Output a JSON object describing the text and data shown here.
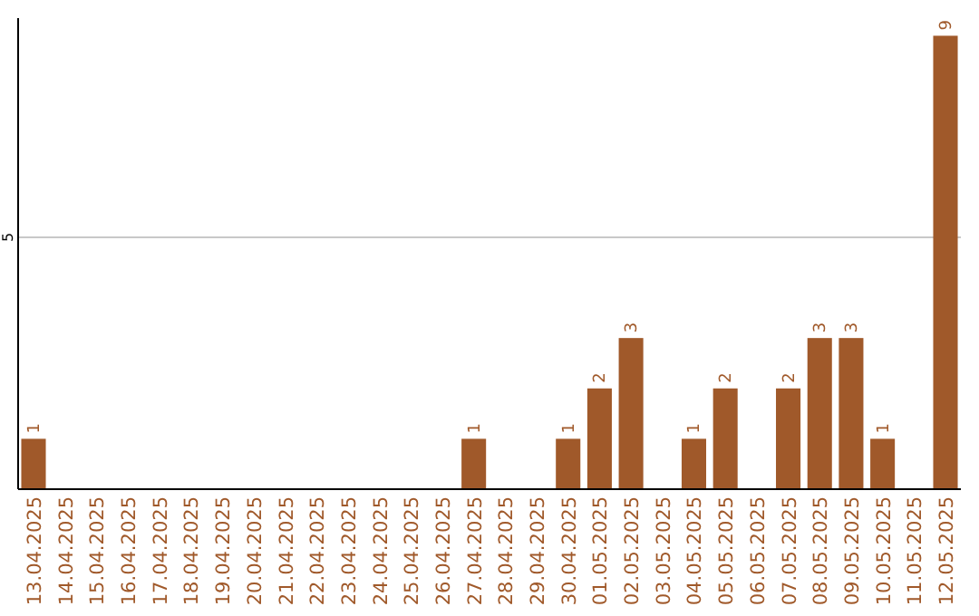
{
  "chart_data": {
    "type": "bar",
    "categories": [
      "13.04.2025",
      "14.04.2025",
      "15.04.2025",
      "16.04.2025",
      "17.04.2025",
      "18.04.2025",
      "19.04.2025",
      "20.04.2025",
      "21.04.2025",
      "22.04.2025",
      "23.04.2025",
      "24.04.2025",
      "25.04.2025",
      "26.04.2025",
      "27.04.2025",
      "28.04.2025",
      "29.04.2025",
      "30.04.2025",
      "01.05.2025",
      "02.05.2025",
      "03.05.2025",
      "04.05.2025",
      "05.05.2025",
      "06.05.2025",
      "07.05.2025",
      "08.05.2025",
      "09.05.2025",
      "10.05.2025",
      "11.05.2025",
      "12.05.2025"
    ],
    "values": [
      1,
      0,
      0,
      0,
      0,
      0,
      0,
      0,
      0,
      0,
      0,
      0,
      0,
      0,
      1,
      0,
      0,
      1,
      2,
      3,
      0,
      1,
      2,
      0,
      2,
      3,
      3,
      1,
      0,
      9
    ],
    "value_labels": [
      "1",
      null,
      null,
      null,
      null,
      null,
      null,
      null,
      null,
      null,
      null,
      null,
      null,
      null,
      "1",
      null,
      null,
      "1",
      "2",
      "3",
      null,
      "1",
      "2",
      null,
      "2",
      "3",
      "3",
      "1",
      null,
      "9"
    ],
    "color": "#a0592a",
    "ylim": [
      0,
      9.35
    ],
    "yticks": [
      5
    ],
    "grid": "y"
  }
}
